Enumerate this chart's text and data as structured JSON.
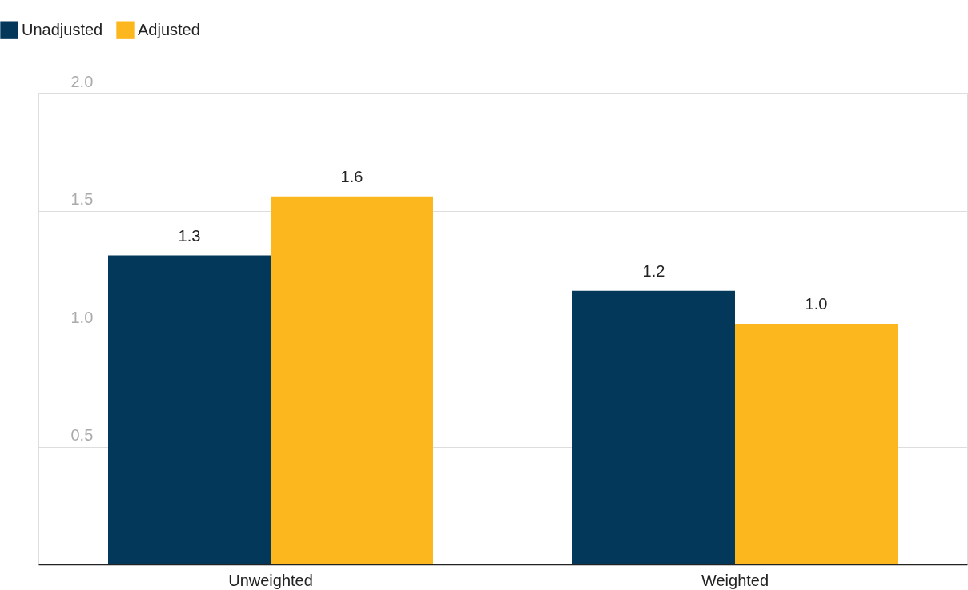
{
  "chart_data": {
    "type": "bar",
    "categories": [
      "Unweighted",
      "Weighted"
    ],
    "series": [
      {
        "name": "Unadjusted",
        "color": "#04385a",
        "values": [
          1.31,
          1.16
        ],
        "value_labels": [
          "1.3",
          "1.2"
        ]
      },
      {
        "name": "Adjusted",
        "color": "#fdb71e",
        "values": [
          1.56,
          1.02
        ],
        "value_labels": [
          "1.6",
          "1.0"
        ]
      }
    ],
    "ylim": [
      0,
      2
    ],
    "yticks": [
      0.5,
      {
        "value": 1,
        "label": "1.0"
      },
      1.5,
      {
        "value": 2,
        "label": "2.0"
      }
    ],
    "grid": "y",
    "legend": "top left"
  }
}
